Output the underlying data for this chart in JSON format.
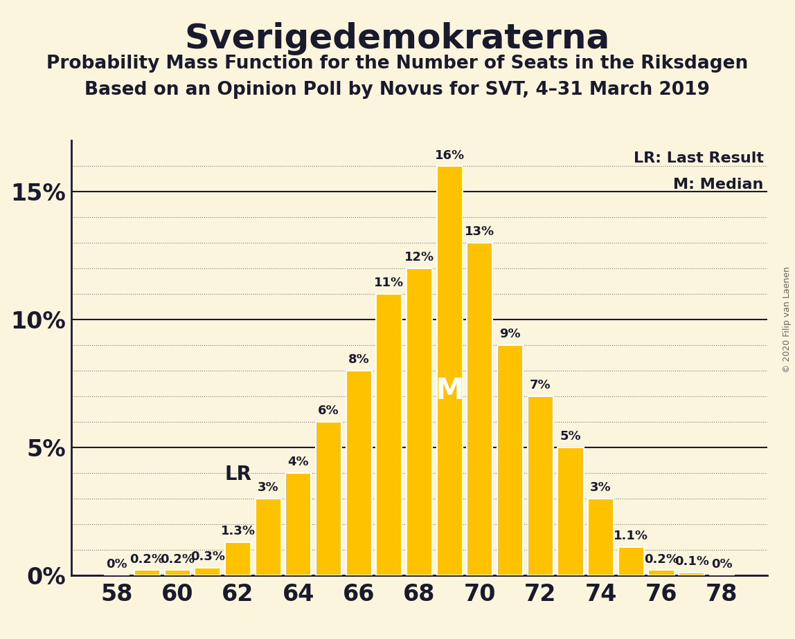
{
  "title": "Sverigedemokraterna",
  "subtitle1": "Probability Mass Function for the Number of Seats in the Riksdagen",
  "subtitle2": "Based on an Opinion Poll by Novus for SVT, 4–31 March 2019",
  "copyright": "© 2020 Filip van Laenen",
  "seats": [
    58,
    59,
    60,
    61,
    62,
    63,
    64,
    65,
    66,
    67,
    68,
    69,
    70,
    71,
    72,
    73,
    74,
    75,
    76,
    77,
    78
  ],
  "values": [
    0.0,
    0.2,
    0.2,
    0.3,
    1.3,
    3.0,
    4.0,
    6.0,
    8.0,
    11.0,
    12.0,
    16.0,
    13.0,
    9.0,
    7.0,
    5.0,
    3.0,
    1.1,
    0.2,
    0.1,
    0.0
  ],
  "bar_color": "#FFC200",
  "bar_edge_color": "#FFFFFF",
  "background_color": "#FAF5DC",
  "text_color": "#1a1a2e",
  "lr_seat": 63,
  "median_seat": 69,
  "ylim_max": 17,
  "ytick_solid": [
    0,
    5,
    10,
    15
  ],
  "legend_lr": "LR: Last Result",
  "legend_m": "M: Median",
  "title_fontsize": 36,
  "subtitle_fontsize": 19,
  "axis_tick_fontsize": 24,
  "bar_label_fontsize": 13,
  "lr_label_fontsize": 20,
  "m_label_fontsize": 30,
  "legend_fontsize": 16,
  "copyright_fontsize": 9
}
